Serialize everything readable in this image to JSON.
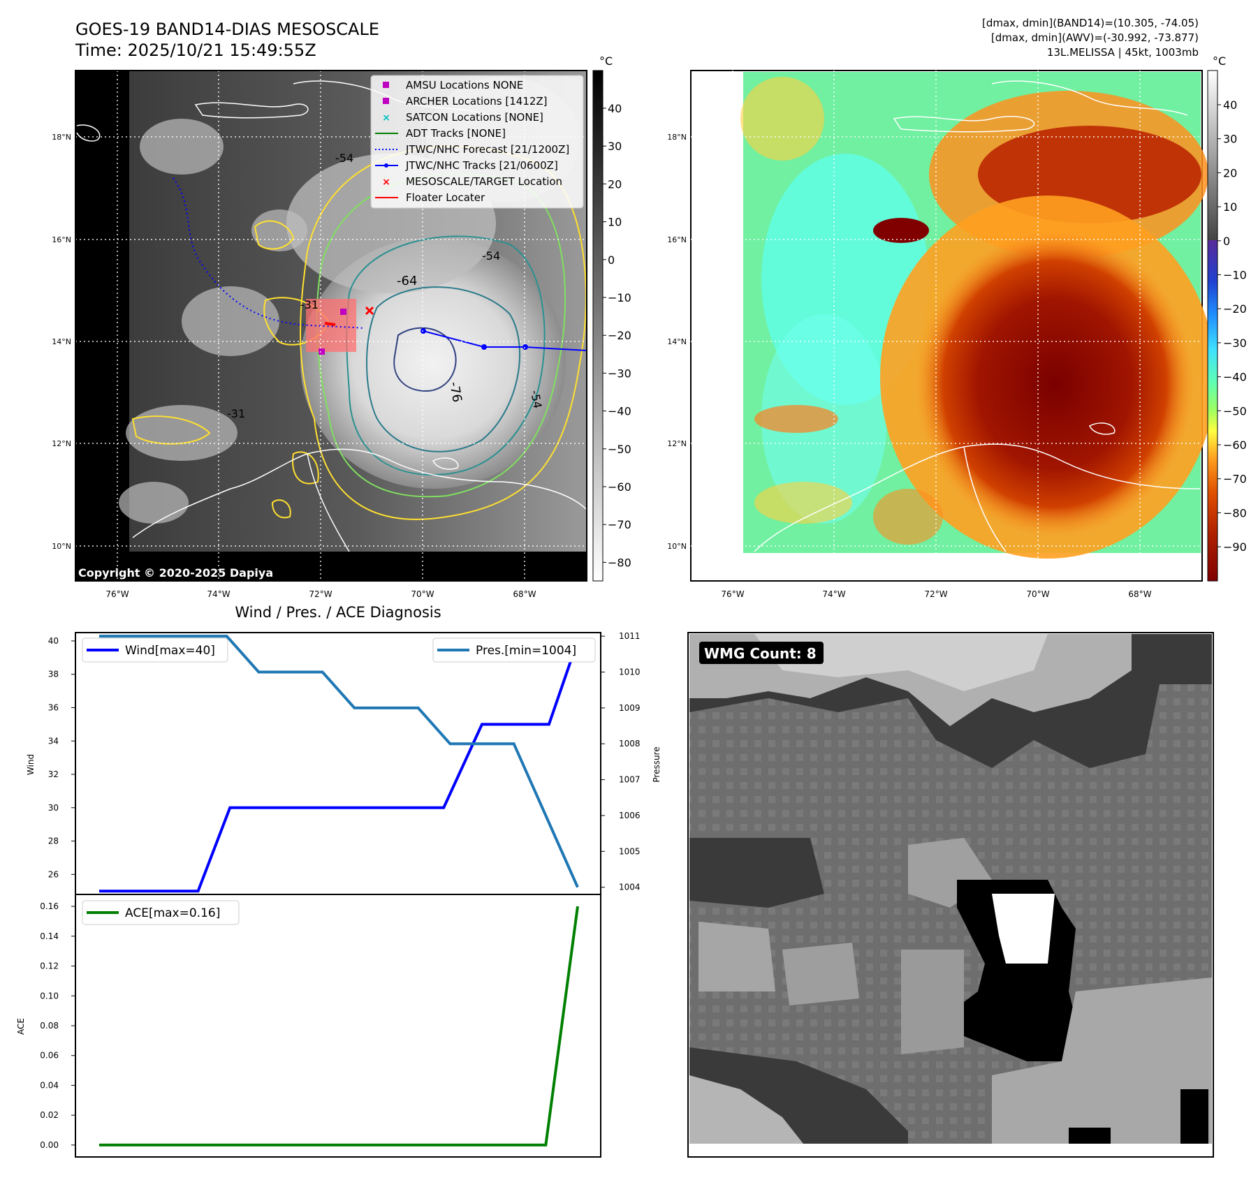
{
  "header": {
    "title_line1": "GOES-19 BAND14-DIAS MESOSCALE",
    "title_line2": "Time: 2025/10/21 15:49:55Z",
    "stats_line1": "[dmax, dmin](BAND14)=(10.305, -74.05)",
    "stats_line2": "[dmax, dmin](AWV)=(-30.992, -73.877)",
    "stats_line3": "13L.MELISSA | 45kt, 1003mb"
  },
  "map_left": {
    "lon_ticks": [
      "76°W",
      "74°W",
      "72°W",
      "70°W",
      "68°W"
    ],
    "lat_ticks": [
      "18°N",
      "16°N",
      "14°N",
      "12°N",
      "10°N"
    ],
    "copyright": "Copyright © 2020-2025 Dapiya",
    "contour_labels": [
      "-64",
      "-76",
      "-54",
      "-54",
      "-54",
      "-31",
      "-31"
    ],
    "colorbar_unit": "°C",
    "colorbar_ticks": [
      "40",
      "30",
      "20",
      "10",
      "0",
      "−10",
      "−20",
      "−30",
      "−40",
      "−50",
      "−60",
      "−70",
      "−80"
    ],
    "legend": [
      {
        "label": "AMSU Locations NONE",
        "color": "#c000c0"
      },
      {
        "label": "ARCHER Locations [1412Z]",
        "color": "#c000c0"
      },
      {
        "label": "SATCON Locations [NONE]",
        "color": "#00c0c0"
      },
      {
        "label": "ADT Tracks [NONE]",
        "color": "#008000"
      },
      {
        "label": "JTWC/NHC Forecast [21/1200Z]",
        "color": "#0000ff"
      },
      {
        "label": "JTWC/NHC Tracks [21/0600Z]",
        "color": "#0000ff"
      },
      {
        "label": "MESOSCALE/TARGET Location",
        "color": "#ff0000"
      },
      {
        "label": "Floater Locater",
        "color": "#ff0000"
      }
    ]
  },
  "map_right": {
    "lon_ticks": [
      "76°W",
      "74°W",
      "72°W",
      "70°W",
      "68°W"
    ],
    "lat_ticks": [
      "18°N",
      "16°N",
      "14°N",
      "12°N",
      "10°N"
    ],
    "colorbar_unit": "°C",
    "colorbar_ticks": [
      "40",
      "30",
      "20",
      "10",
      "0",
      "−10",
      "−20",
      "−30",
      "−40",
      "−50",
      "−60",
      "−70",
      "−80",
      "−90"
    ]
  },
  "wmg": {
    "label": "WMG Count: 8"
  },
  "chart_data": [
    {
      "type": "line",
      "title": "Wind / Pres. / ACE Diagnosis",
      "ylabel": "Wind",
      "ylim": [
        24.8,
        40.5
      ],
      "yticks": [
        26,
        28,
        30,
        32,
        34,
        36,
        38,
        40
      ],
      "x": [
        0,
        1,
        2,
        3,
        4,
        5,
        6,
        7
      ],
      "series": [
        {
          "name": "Wind[max=40]",
          "color": "#0000ff",
          "values": [
            25,
            25,
            30,
            30,
            30,
            30,
            35,
            35,
            40
          ],
          "x": [
            0,
            1.55,
            2.05,
            3,
            4,
            5.4,
            6,
            7.05,
            7.5
          ]
        }
      ],
      "legend": "top-left"
    },
    {
      "type": "line",
      "ylabel": "Pressure",
      "ylim": [
        1003.8,
        1011.1
      ],
      "yticks": [
        1004,
        1005,
        1006,
        1007,
        1008,
        1009,
        1010,
        1011
      ],
      "series": [
        {
          "name": "Pres.[min=1004]",
          "color": "#1f77b4",
          "values": [
            1011,
            1011,
            1010,
            1010,
            1009,
            1009,
            1008,
            1008,
            1004
          ],
          "x": [
            0,
            2,
            2.5,
            3.5,
            4,
            5,
            5.5,
            6.5,
            7.5
          ]
        }
      ],
      "legend": "top-right"
    },
    {
      "type": "line",
      "ylabel": "ACE",
      "ylim": [
        -0.008,
        0.168
      ],
      "yticks": [
        0.0,
        0.02,
        0.04,
        0.06,
        0.08,
        0.1,
        0.12,
        0.14,
        0.16
      ],
      "ytick_labels": [
        "0.00",
        "0.02",
        "0.04",
        "0.06",
        "0.08",
        "0.10",
        "0.12",
        "0.14",
        "0.16"
      ],
      "series": [
        {
          "name": "ACE[max=0.16]",
          "color": "#008000",
          "values": [
            0,
            0,
            0.16
          ],
          "x": [
            0,
            7,
            7.5
          ]
        }
      ],
      "legend": "top-left"
    }
  ]
}
